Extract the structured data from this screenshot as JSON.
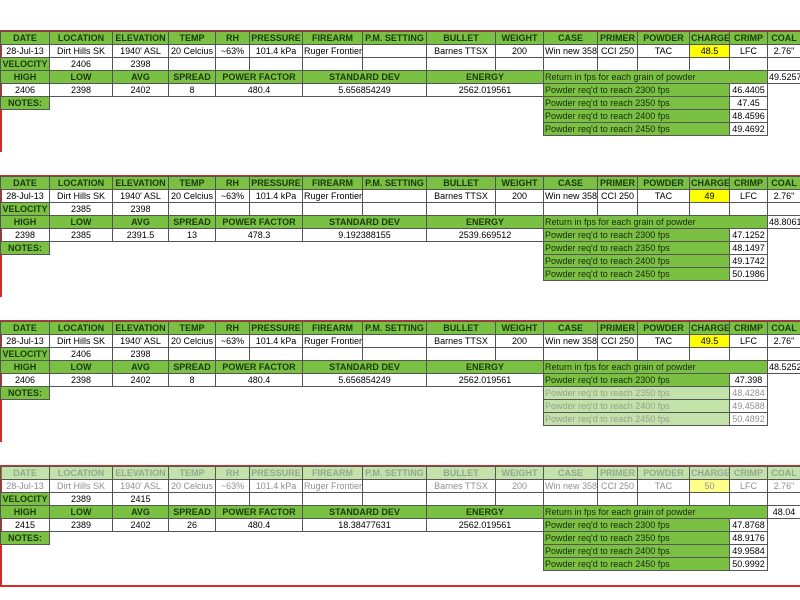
{
  "headers": {
    "top": [
      "DATE",
      "LOCATION",
      "ELEVATION",
      "TEMP",
      "RH",
      "PRESSURE",
      "FIREARM",
      "P.M. SETTING",
      "BULLET",
      "WEIGHT",
      "CASE",
      "PRIMER",
      "POWDER",
      "CHARGE",
      "CRIMP",
      "COAL"
    ],
    "velocity": "VELOCITY",
    "stats": [
      "HIGH",
      "LOW",
      "AVG",
      "SPREAD",
      "POWER FACTOR",
      "STANDARD DEV",
      "ENERGY"
    ],
    "return_label": "Return in fps for each grain of powder",
    "notes": "NOTES:",
    "powder_labels": [
      "Powder req'd to reach 2300 fps",
      "Powder req'd to reach 2350 fps",
      "Powder req'd to reach 2400 fps",
      "Powder req'd to reach 2450 fps"
    ]
  },
  "highlight_color": "#ffff00",
  "accent_color": "#79c043",
  "blocks": [
    {
      "info": [
        "28-Jul-13",
        "Dirt Hills SK",
        "1940' ASL",
        "20 Celcius",
        "~63%",
        "101.4 kPa",
        "Ruger Frontier",
        "",
        "Barnes TTSX",
        "200",
        "Win new 358",
        "CCI 250",
        "TAC",
        "48.5",
        "LFC",
        "2.76\""
      ],
      "velocity": [
        "2406",
        "2398"
      ],
      "stats": [
        "2406",
        "2398",
        "2402",
        "8",
        "480.4",
        "5.656854249",
        "2562.019561"
      ],
      "return_value": "49.5257",
      "powder_values": [
        "46.4405",
        "47.45",
        "48.4596",
        "49.4692"
      ]
    },
    {
      "info": [
        "28-Jul-13",
        "Dirt Hills SK",
        "1940' ASL",
        "20 Celcius",
        "~63%",
        "101.4 kPa",
        "Ruger Frontier",
        "",
        "Barnes TTSX",
        "200",
        "Win new 358",
        "CCI 250",
        "TAC",
        "49",
        "LFC",
        "2.76\""
      ],
      "velocity": [
        "2385",
        "2398"
      ],
      "stats": [
        "2398",
        "2385",
        "2391.5",
        "13",
        "478.3",
        "9.192388155",
        "2539.669512"
      ],
      "return_value": "48.8061",
      "powder_values": [
        "47.1252",
        "48.1497",
        "49.1742",
        "50.1986"
      ]
    },
    {
      "info": [
        "28-Jul-13",
        "Dirt Hills SK",
        "1940' ASL",
        "20 Celcius",
        "~63%",
        "101.4 kPa",
        "Ruger Frontier",
        "",
        "Barnes TTSX",
        "200",
        "Win new 358",
        "CCI 250",
        "TAC",
        "49.5",
        "LFC",
        "2.76\""
      ],
      "velocity": [
        "2406",
        "2398"
      ],
      "stats": [
        "2406",
        "2398",
        "2402",
        "8",
        "480.4",
        "5.656854249",
        "2562.019561"
      ],
      "return_value": "48.5252",
      "powder_values": [
        "47.398",
        "48.4284",
        "49.4588",
        "50.4892"
      ]
    },
    {
      "info": [
        "28-Jul-13",
        "Dirt Hills SK",
        "1940' ASL",
        "20 Celcius",
        "~63%",
        "101.4 kPa",
        "Ruger Frontier",
        "",
        "Barnes TTSX",
        "200",
        "Win new 358",
        "CCI 250",
        "TAC",
        "50",
        "LFC",
        "2.76\""
      ],
      "velocity": [
        "2389",
        "2415"
      ],
      "stats": [
        "2415",
        "2389",
        "2402",
        "26",
        "480.4",
        "18.38477631",
        "2562.019561"
      ],
      "return_value": "48.04",
      "powder_values": [
        "47.8768",
        "48.9176",
        "49.9584",
        "50.9992"
      ]
    }
  ]
}
